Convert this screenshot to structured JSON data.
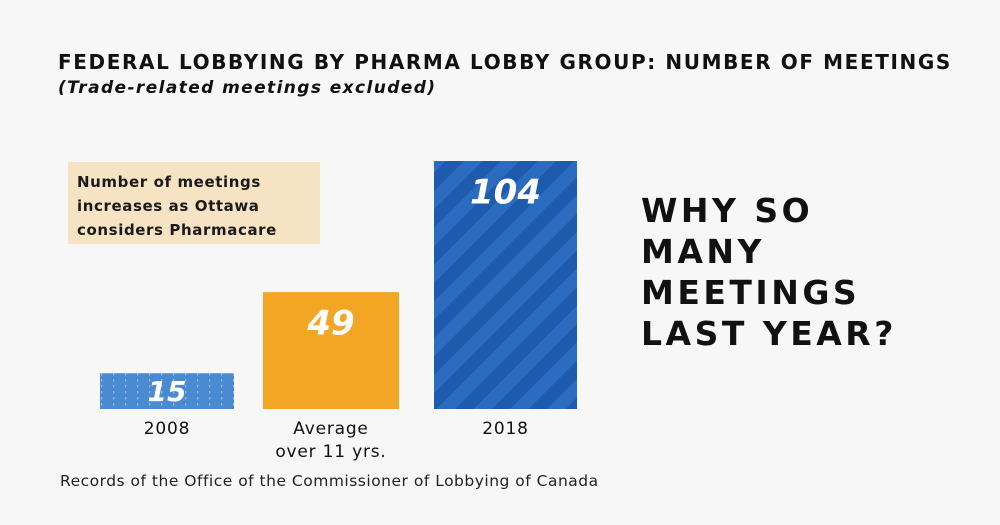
{
  "title": "FEDERAL LOBBYING BY PHARMA LOBBY GROUP: NUMBER OF MEETINGS",
  "subtitle": "(Trade-related meetings excluded)",
  "annotation": {
    "lines": [
      "Number of meetings",
      "increases as Ottawa",
      "considers Pharmacare"
    ],
    "background": "#f6e3c3"
  },
  "question": {
    "lines": [
      "WHY SO",
      "MANY",
      "MEETINGS",
      "LAST YEAR?"
    ]
  },
  "source": "Records of the Office of the Commissioner of Lobbying of Canada",
  "chart_data": {
    "type": "bar",
    "title": "FEDERAL LOBBYING BY PHARMA LOBBY GROUP: NUMBER OF MEETINGS",
    "subtitle": "(Trade-related meetings excluded)",
    "categories": [
      "2008",
      "Average over 11 yrs.",
      "2018"
    ],
    "category_lines": [
      [
        "2008"
      ],
      [
        "Average",
        "over 11 yrs."
      ],
      [
        "2018"
      ]
    ],
    "values": [
      15,
      49,
      104
    ],
    "value_labels": [
      "15",
      "49",
      "104"
    ],
    "colors": [
      "#4a8ad0",
      "#f2a623",
      "#1f5bac"
    ],
    "patterns": [
      "dotted-vertical",
      "solid",
      "diagonal-stripes"
    ],
    "xlabel": "",
    "ylabel": "",
    "ylim": [
      0,
      104
    ],
    "grid": false,
    "legend": "none"
  }
}
